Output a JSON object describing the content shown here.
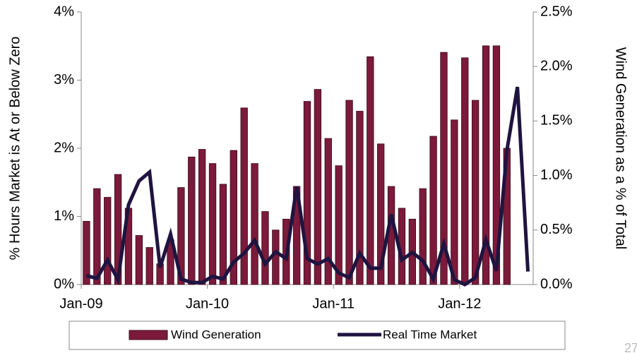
{
  "chart_data": {
    "type": "bar-line",
    "categories": [
      "Jan-09",
      null,
      null,
      null,
      null,
      null,
      null,
      null,
      null,
      null,
      null,
      null,
      "Jan-10",
      null,
      null,
      null,
      null,
      null,
      null,
      null,
      null,
      null,
      null,
      null,
      "Jan-11",
      null,
      null,
      null,
      null,
      null,
      null,
      null,
      null,
      null,
      null,
      null,
      "Jan-12",
      null,
      null,
      null,
      null,
      null,
      null
    ],
    "y_label": "% Hours Market is At or Below Zero",
    "y2_label": "Wind Generation as a % of Total",
    "ylim": [
      0,
      4
    ],
    "yticks": [
      {
        "value": 0,
        "label": "0%"
      },
      {
        "value": 1,
        "label": "1%"
      },
      {
        "value": 2,
        "label": "2%"
      },
      {
        "value": 3,
        "label": "3%"
      },
      {
        "value": 4,
        "label": "4%"
      }
    ],
    "y2lim": [
      0,
      2.5
    ],
    "y2ticks": [
      {
        "value": 0,
        "label": "0.0%"
      },
      {
        "value": 0.5,
        "label": "0.5%"
      },
      {
        "value": 1,
        "label": "1.0%"
      },
      {
        "value": 1.5,
        "label": "1.5%"
      },
      {
        "value": 2,
        "label": "2.0%"
      },
      {
        "value": 2.5,
        "label": "2.5%"
      }
    ],
    "series": [
      {
        "name": "Wind Generation",
        "type": "bar",
        "axis": "y2",
        "color": "#7b1a3a",
        "values": [
          0.58,
          0.88,
          0.8,
          1.01,
          0.7,
          0.45,
          0.34,
          0.19,
          0.41,
          0.89,
          1.17,
          1.24,
          1.11,
          0.92,
          1.23,
          1.62,
          1.11,
          0.67,
          0.5,
          0.6,
          0.9,
          1.68,
          1.79,
          1.34,
          1.09,
          1.69,
          1.59,
          2.09,
          1.29,
          0.9,
          0.7,
          0.6,
          0.88,
          1.36,
          2.13,
          1.51,
          2.08,
          1.69,
          2.19,
          2.19,
          1.25,
          null,
          null
        ]
      },
      {
        "name": "Real Time Market",
        "type": "line",
        "axis": "y",
        "color": "#1f1440",
        "values": [
          0.13,
          0.09,
          0.36,
          0.07,
          1.17,
          1.52,
          1.65,
          0.25,
          0.74,
          0.08,
          0.03,
          0.03,
          0.12,
          0.08,
          0.33,
          0.46,
          0.65,
          0.3,
          0.48,
          0.38,
          1.44,
          0.38,
          0.3,
          0.38,
          0.17,
          0.1,
          0.46,
          0.24,
          0.24,
          1.03,
          0.36,
          0.47,
          0.35,
          0.08,
          0.6,
          0.07,
          0.0,
          0.1,
          0.66,
          0.2,
          1.97,
          2.9,
          0.19
        ]
      }
    ]
  },
  "page_number": "27"
}
